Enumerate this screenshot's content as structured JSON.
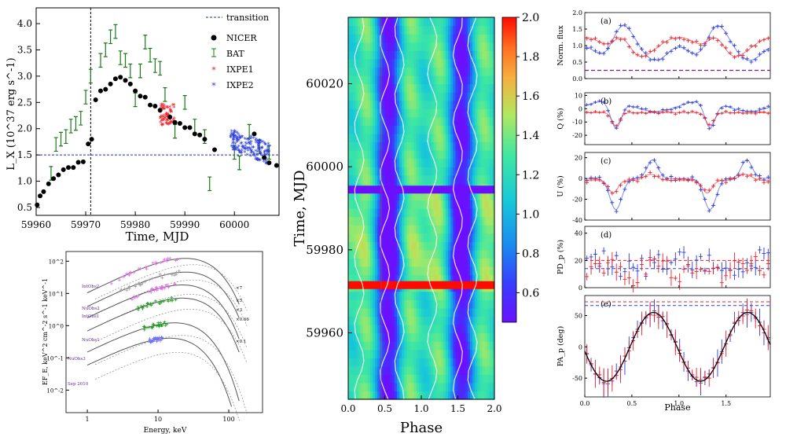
{
  "chart_data": [
    {
      "type": "scatter",
      "xlabel": "Time, MJD",
      "ylabel": "L_X (10^37 erg s^-1)",
      "xlim": [
        59960,
        60009
      ],
      "ylim": [
        0.35,
        4.3
      ],
      "xticks": [
        "59960",
        "59970",
        "59980",
        "59990",
        "60000"
      ],
      "xtick_values": [
        59960,
        59970,
        59980,
        59990,
        60000
      ],
      "yticks": [
        "0.5",
        "1.0",
        "1.5",
        "2.0",
        "2.5",
        "3.0",
        "3.5",
        "4.0"
      ],
      "ytick_values": [
        0.5,
        1.0,
        1.5,
        2.0,
        2.5,
        3.0,
        3.5,
        4.0
      ],
      "legend": {
        "placement": "top-right",
        "entries": [
          "transition",
          "NICER",
          "BAT",
          "IXPE1",
          "IXPE2"
        ]
      },
      "transition_level": 1.5,
      "transition_time": 59971,
      "colors": {
        "nicer": "#000000",
        "bat": "#1a7a1a",
        "ixpe1": "#e8202a",
        "ixpe2": "#2a3bd8",
        "transition": "#1c2ca8"
      },
      "nicer": {
        "x": [
          59960.2,
          59960.8,
          59961.5,
          59962.5,
          59963.5,
          59964.5,
          59965.5,
          59966.5,
          59967.5,
          59968.5,
          59969.5,
          59970.5,
          59971.2,
          59972,
          59973,
          59974,
          59975,
          59976,
          59977,
          59978,
          59979,
          59980,
          59981,
          59982,
          59983,
          59984,
          59985,
          59987,
          59988,
          59989,
          59990,
          59991,
          59992,
          59993,
          59994,
          59996,
          60004,
          60006,
          60007,
          60008.5
        ],
        "y": [
          0.55,
          0.72,
          0.8,
          0.95,
          1.05,
          1.12,
          1.22,
          1.26,
          1.26,
          1.36,
          1.37,
          1.71,
          1.8,
          2.55,
          2.72,
          2.75,
          2.85,
          2.95,
          2.98,
          2.92,
          2.85,
          2.72,
          2.62,
          2.6,
          2.45,
          2.43,
          2.35,
          2.22,
          2.12,
          2.1,
          2.02,
          2.02,
          1.9,
          1.88,
          1.8,
          1.6,
          1.9,
          1.45,
          1.35,
          1.3
        ]
      },
      "bat": {
        "x": [
          59963,
          59964,
          59965,
          59966,
          59967,
          59968,
          59969,
          59970,
          59971,
          59973,
          59974,
          59975,
          59976,
          59977,
          59978,
          59979,
          59980,
          59981,
          59982,
          59983,
          59984,
          59985,
          59986,
          59988,
          59990,
          59992,
          59994,
          59995,
          60000,
          60001,
          60003,
          60005,
          60007
        ],
        "y": [
          1.15,
          1.7,
          1.8,
          1.85,
          2.05,
          2.1,
          2.2,
          2.6,
          3.0,
          3.3,
          3.5,
          3.75,
          3.85,
          3.35,
          3.3,
          3.1,
          2.55,
          3.1,
          3.65,
          3.4,
          3.2,
          3.15,
          2.65,
          1.95,
          2.5,
          2.05,
          1.85,
          0.95,
          1.55,
          1.35,
          1.95,
          1.65,
          1.55
        ]
      },
      "ixpe1_range": {
        "x": [
          59985,
          59988
        ],
        "y_center": 2.25,
        "y_spread": 0.2
      },
      "ixpe2_range": {
        "x": [
          59999,
          60007
        ],
        "y_start": 1.8,
        "y_end": 1.5,
        "y_spread": 0.2
      }
    },
    {
      "type": "line",
      "xlabel": "Energy, keV",
      "ylabel": "EF_E, keV^2 cm^-2 s^-1 keV^-1",
      "xscale": "log",
      "yscale": "log",
      "xlim": [
        0.5,
        300
      ],
      "ylim": [
        0.002,
        200
      ],
      "xticks": [
        "1",
        "10",
        "100"
      ],
      "xtick_values": [
        1,
        10,
        100
      ],
      "yticks": [
        "10^-2",
        "10^-1",
        "10^0",
        "10^1",
        "10^2"
      ],
      "ytick_values": [
        0.01,
        0.1,
        1,
        10,
        100
      ],
      "series_labels": [
        "IntObs2",
        "NuObs2",
        "IntObs1",
        "NuObs1",
        "NuObs3",
        "Sep 2010"
      ],
      "scale_labels": [
        "×7",
        "×5",
        "×3",
        "×0.66",
        "×0.1"
      ],
      "curves": [
        {
          "norm": 120,
          "peak": 20,
          "color": "#e070e0"
        },
        {
          "norm": 45,
          "peak": 20,
          "color": "#a0a0a0"
        },
        {
          "norm": 18,
          "peak": 18,
          "color": "#e070e0"
        },
        {
          "norm": 7,
          "peak": 18,
          "color": "#20a020"
        },
        {
          "norm": 1.2,
          "peak": 14,
          "color": "#20a020"
        },
        {
          "norm": 0.4,
          "peak": 12,
          "color": "#7070ff"
        }
      ]
    },
    {
      "type": "heatmap",
      "xlabel": "Phase",
      "ylabel": "Time, MJD",
      "xlim": [
        0,
        2.0
      ],
      "ylim": [
        59944,
        60036
      ],
      "xticks": [
        "0.0",
        "0.5",
        "1.0",
        "1.5",
        "2.0"
      ],
      "xtick_values": [
        0,
        0.5,
        1.0,
        1.5,
        2.0
      ],
      "yticks": [
        "59960",
        "59980",
        "60000",
        "60020"
      ],
      "ytick_values": [
        59960,
        59980,
        60000,
        60020
      ],
      "colorbar": {
        "min": 0.45,
        "max": 2.0,
        "ticks": [
          "0.6",
          "0.8",
          "1.0",
          "1.2",
          "1.4",
          "1.6",
          "1.8",
          "2.0"
        ],
        "tick_values": [
          0.6,
          0.8,
          1.0,
          1.2,
          1.4,
          1.6,
          1.8,
          2.0
        ]
      },
      "bands": [
        {
          "mjd": 59994.5,
          "value": 0.45
        },
        {
          "mjd": 59971.5,
          "value": 2.0
        }
      ]
    },
    {
      "type": "line",
      "xlabel": "Phase",
      "xlim": [
        0,
        1.97
      ],
      "xticks": [
        "0.0",
        "0.5",
        "1.0",
        "1.5"
      ],
      "xtick_values": [
        0,
        0.5,
        1.0,
        1.5
      ],
      "colors": {
        "ixpe1": "#e8202a",
        "ixpe2": "#2a3bd8",
        "model": "#000000",
        "dash": "#7a1a8a"
      },
      "subplots": [
        {
          "letter": "(a)",
          "ylabel": "Norm. flux",
          "ylim": [
            0,
            2.0
          ],
          "yticks": [
            "0.0",
            "0.5",
            "1.0",
            "1.5",
            "2.0"
          ],
          "ytick_values": [
            0,
            0.5,
            1.0,
            1.5,
            2.0
          ],
          "baseline": 0.25
        },
        {
          "letter": "(b)",
          "ylabel": "Q (%)",
          "ylim": [
            -27,
            12
          ],
          "yticks": [
            "-20",
            "-10",
            "0",
            "10"
          ],
          "ytick_values": [
            -20,
            -10,
            0,
            10
          ]
        },
        {
          "letter": "(c)",
          "ylabel": "U (%)",
          "ylim": [
            -40,
            25
          ],
          "yticks": [
            "-40",
            "-20",
            "0",
            "20"
          ],
          "ytick_values": [
            -40,
            -20,
            0,
            20
          ]
        },
        {
          "letter": "(d)",
          "ylabel": "PD_p (%)",
          "ylim": [
            0,
            45
          ],
          "yticks": [
            "0",
            "20",
            "40"
          ],
          "ytick_values": [
            0,
            20,
            40
          ],
          "dash_red": 20,
          "dash_blue": 14
        },
        {
          "letter": "(e)",
          "ylabel": "PA_p (deg)",
          "ylim": [
            -80,
            82
          ],
          "yticks": [
            "-50",
            "0",
            "50"
          ],
          "ytick_values": [
            -50,
            0,
            50
          ],
          "dash_red": 72,
          "dash_blue": 66
        }
      ]
    }
  ]
}
